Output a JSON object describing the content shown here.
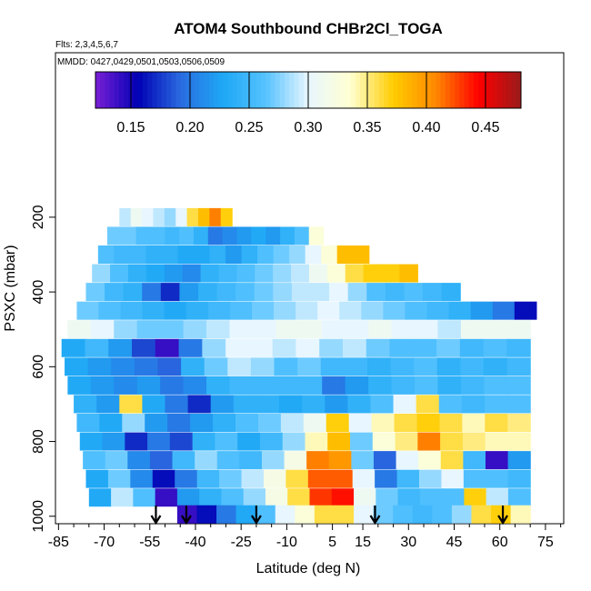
{
  "chart_data": {
    "type": "heatmap",
    "title": "ATOM4 Southbound CHBr2Cl_TOGA",
    "flights_label": "Flts: 2,3,4,5,6,7",
    "dates_label": "MMDD: 0427,0429,0501,0503,0506,0509",
    "xlabel": "Latitude (deg N)",
    "ylabel": "PSXC (mbar)",
    "x_ticks": [
      -85,
      -70,
      -55,
      -40,
      -25,
      -10,
      5,
      15,
      30,
      45,
      60,
      75
    ],
    "x_tick_labels": [
      "-85",
      "-70",
      "-55",
      "-40",
      "-25",
      "-10",
      "5",
      "15",
      "30",
      "45",
      "60",
      "75"
    ],
    "y_ticks": [
      200,
      400,
      600,
      800,
      1000
    ],
    "y_tick_labels": [
      "200",
      "400",
      "600",
      "800",
      "1000"
    ],
    "xlim": [
      -86,
      81
    ],
    "ylim": [
      1020,
      -240
    ],
    "colorbar": {
      "min": 0.12,
      "max": 0.48,
      "ticks": [
        0.15,
        0.2,
        0.25,
        0.3,
        0.35,
        0.4,
        0.45
      ],
      "tick_labels": [
        "0.15",
        "0.20",
        "0.25",
        "0.30",
        "0.35",
        "0.40",
        "0.45"
      ],
      "colors": [
        "#7a1fd6",
        "#0000b4",
        "#2a6be0",
        "#1ea8f5",
        "#55c2ff",
        "#e8f6ff",
        "#ffffd0",
        "#ffcc00",
        "#ff8800",
        "#ff0000",
        "#9a1a1a"
      ]
    },
    "arrow_latitudes": [
      -53,
      -43,
      -20,
      19,
      61
    ],
    "rows": [
      {
        "p": 200,
        "x0": -65,
        "x1": -28,
        "v": [
          0.29,
          0.31,
          0.3,
          0.29,
          0.28,
          0.3,
          0.36,
          0.38,
          0.41,
          0.37
        ]
      },
      {
        "p": 250,
        "x0": -69,
        "x1": 2,
        "v": [
          0.27,
          0.27,
          0.26,
          0.26,
          0.25,
          0.26,
          0.24,
          0.2,
          0.21,
          0.22,
          0.23,
          0.22,
          0.24,
          0.26,
          0.33
        ]
      },
      {
        "p": 300,
        "x0": -72,
        "x1": 17,
        "v": [
          0.26,
          0.25,
          0.25,
          0.24,
          0.24,
          0.23,
          0.23,
          0.24,
          0.22,
          0.24,
          0.26,
          0.27,
          0.28,
          0.3,
          0.33,
          0.38,
          0.38
        ]
      },
      {
        "p": 350,
        "x0": -74,
        "x1": 33,
        "v": [
          0.28,
          0.26,
          0.24,
          0.23,
          0.22,
          0.21,
          0.24,
          0.25,
          0.26,
          0.27,
          0.28,
          0.29,
          0.31,
          0.33,
          0.36,
          0.37,
          0.37,
          0.38
        ]
      },
      {
        "p": 400,
        "x0": -76,
        "x1": 47,
        "v": [
          0.27,
          0.25,
          0.24,
          0.2,
          0.17,
          0.22,
          0.24,
          0.25,
          0.26,
          0.27,
          0.28,
          0.29,
          0.29,
          0.3,
          0.28,
          0.26,
          0.25,
          0.26,
          0.25,
          0.24
        ]
      },
      {
        "p": 450,
        "x0": -79,
        "x1": 72,
        "v": [
          0.27,
          0.26,
          0.25,
          0.24,
          0.23,
          0.24,
          0.25,
          0.26,
          0.27,
          0.28,
          0.29,
          0.3,
          0.29,
          0.28,
          0.27,
          0.26,
          0.25,
          0.24,
          0.22,
          0.2,
          0.16
        ]
      },
      {
        "p": 500,
        "x0": -82,
        "x1": 70,
        "v": [
          0.31,
          0.3,
          0.28,
          0.27,
          0.27,
          0.28,
          0.29,
          0.3,
          0.3,
          0.31,
          0.31,
          0.3,
          0.3,
          0.31,
          0.3,
          0.3,
          0.29,
          0.31,
          0.31,
          0.31
        ]
      },
      {
        "p": 550,
        "x0": -84,
        "x1": 70,
        "v": [
          0.23,
          0.25,
          0.22,
          0.18,
          0.14,
          0.2,
          0.28,
          0.3,
          0.3,
          0.29,
          0.3,
          0.28,
          0.29,
          0.27,
          0.26,
          0.26,
          0.27,
          0.25,
          0.26,
          0.25
        ]
      },
      {
        "p": 600,
        "x0": -83,
        "x1": 70,
        "v": [
          0.23,
          0.22,
          0.21,
          0.2,
          0.19,
          0.24,
          0.27,
          0.29,
          0.28,
          0.26,
          0.27,
          0.25,
          0.25,
          0.24,
          0.25,
          0.26,
          0.24,
          0.25,
          0.24,
          0.25
        ]
      },
      {
        "p": 650,
        "x0": -82,
        "x1": 70,
        "v": [
          0.23,
          0.22,
          0.21,
          0.22,
          0.2,
          0.21,
          0.24,
          0.25,
          0.25,
          0.25,
          0.25,
          0.2,
          0.22,
          0.24,
          0.25,
          0.26,
          0.24,
          0.25,
          0.26,
          0.26
        ]
      },
      {
        "p": 700,
        "x0": -80,
        "x1": 70,
        "v": [
          0.24,
          0.22,
          0.36,
          0.23,
          0.2,
          0.17,
          0.22,
          0.24,
          0.24,
          0.23,
          0.24,
          0.22,
          0.24,
          0.26,
          0.3,
          0.36,
          0.26,
          0.25,
          0.26,
          0.26
        ]
      },
      {
        "p": 750,
        "x0": -79,
        "x1": 70,
        "v": [
          0.25,
          0.23,
          0.28,
          0.22,
          0.2,
          0.22,
          0.24,
          0.26,
          0.27,
          0.29,
          0.31,
          0.37,
          0.3,
          0.34,
          0.36,
          0.37,
          0.36,
          0.34,
          0.36,
          0.35
        ]
      },
      {
        "p": 800,
        "x0": -78,
        "x1": 70,
        "v": [
          0.23,
          0.22,
          0.17,
          0.2,
          0.18,
          0.24,
          0.26,
          0.23,
          0.25,
          0.28,
          0.34,
          0.38,
          0.27,
          0.33,
          0.35,
          0.41,
          0.36,
          0.35,
          0.34,
          0.34
        ]
      },
      {
        "p": 850,
        "x0": -77,
        "x1": 70,
        "v": [
          0.26,
          0.27,
          0.21,
          0.19,
          0.25,
          0.28,
          0.26,
          0.25,
          0.28,
          0.32,
          0.41,
          0.4,
          0.27,
          0.19,
          0.3,
          0.33,
          0.36,
          0.25,
          0.14,
          0.22
        ]
      },
      {
        "p": 900,
        "x0": -76,
        "x1": 70,
        "v": [
          0.23,
          0.27,
          0.21,
          0.16,
          0.2,
          0.25,
          0.27,
          0.29,
          0.32,
          0.36,
          0.42,
          0.42,
          0.3,
          0.2,
          0.25,
          0.28,
          0.3,
          0.26,
          0.26,
          0.25
        ]
      },
      {
        "p": 950,
        "x0": -75,
        "x1": 70,
        "v": [
          0.23,
          0.29,
          0.26,
          0.14,
          0.22,
          0.24,
          0.26,
          0.28,
          0.32,
          0.36,
          0.43,
          0.44,
          0.31,
          0.27,
          0.25,
          0.26,
          0.26,
          0.37,
          0.29,
          0.26
        ]
      },
      {
        "p": 995,
        "x0": -46,
        "x1": 70,
        "v": [
          0.14,
          0.16,
          0.2,
          0.23,
          0.26,
          0.3,
          0.33,
          0.36,
          0.36,
          0.3,
          0.27,
          0.26,
          0.25,
          0.26,
          0.28,
          0.36,
          0.37,
          0.34
        ]
      }
    ]
  }
}
